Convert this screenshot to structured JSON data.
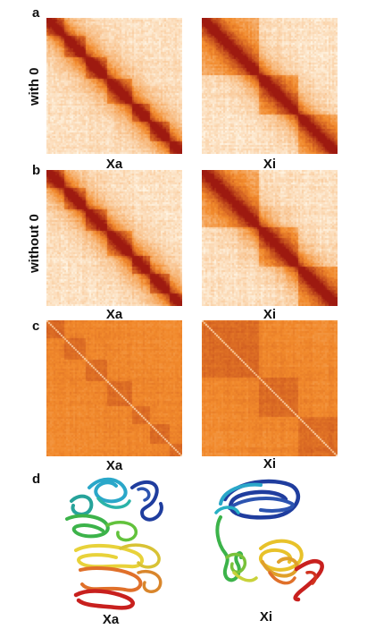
{
  "panels": {
    "a": {
      "letter": "a",
      "row_label": "with 0",
      "left_caption": "Xa",
      "right_caption": "Xi"
    },
    "b": {
      "letter": "b",
      "row_label": "without 0",
      "left_caption": "Xa",
      "right_caption": "Xi"
    },
    "c": {
      "letter": "c",
      "left_caption": "Xa",
      "right_caption": "Xi"
    },
    "d": {
      "letter": "d",
      "left_caption": "Xa",
      "right_caption": "Xi"
    }
  },
  "colors": {
    "heatmap_low": "#fff6e6",
    "heatmap_mid": "#f28a2c",
    "heatmap_high": "#9e1a10",
    "structure_gradient": [
      "#1f3d9e",
      "#2aa7c9",
      "#3cb34a",
      "#e8d23a",
      "#e0702a",
      "#c8201e"
    ]
  },
  "heatmaps": [
    {
      "id": "a-xa",
      "style": "sharp",
      "boundaries": [
        0.13,
        0.28,
        0.44,
        0.62,
        0.76,
        0.9
      ]
    },
    {
      "id": "a-xi",
      "style": "sharp",
      "boundaries": [
        0.42,
        0.7
      ]
    },
    {
      "id": "b-xa",
      "style": "sharp",
      "boundaries": [
        0.13,
        0.28,
        0.44,
        0.62,
        0.76,
        0.9
      ]
    },
    {
      "id": "b-xi",
      "style": "sharp",
      "boundaries": [
        0.42,
        0.7
      ]
    },
    {
      "id": "c-xa",
      "style": "normalized",
      "boundaries": [
        0.13,
        0.28,
        0.44,
        0.62,
        0.76,
        0.9
      ]
    },
    {
      "id": "c-xi",
      "style": "normalized",
      "boundaries": [
        0.42,
        0.7
      ]
    }
  ]
}
